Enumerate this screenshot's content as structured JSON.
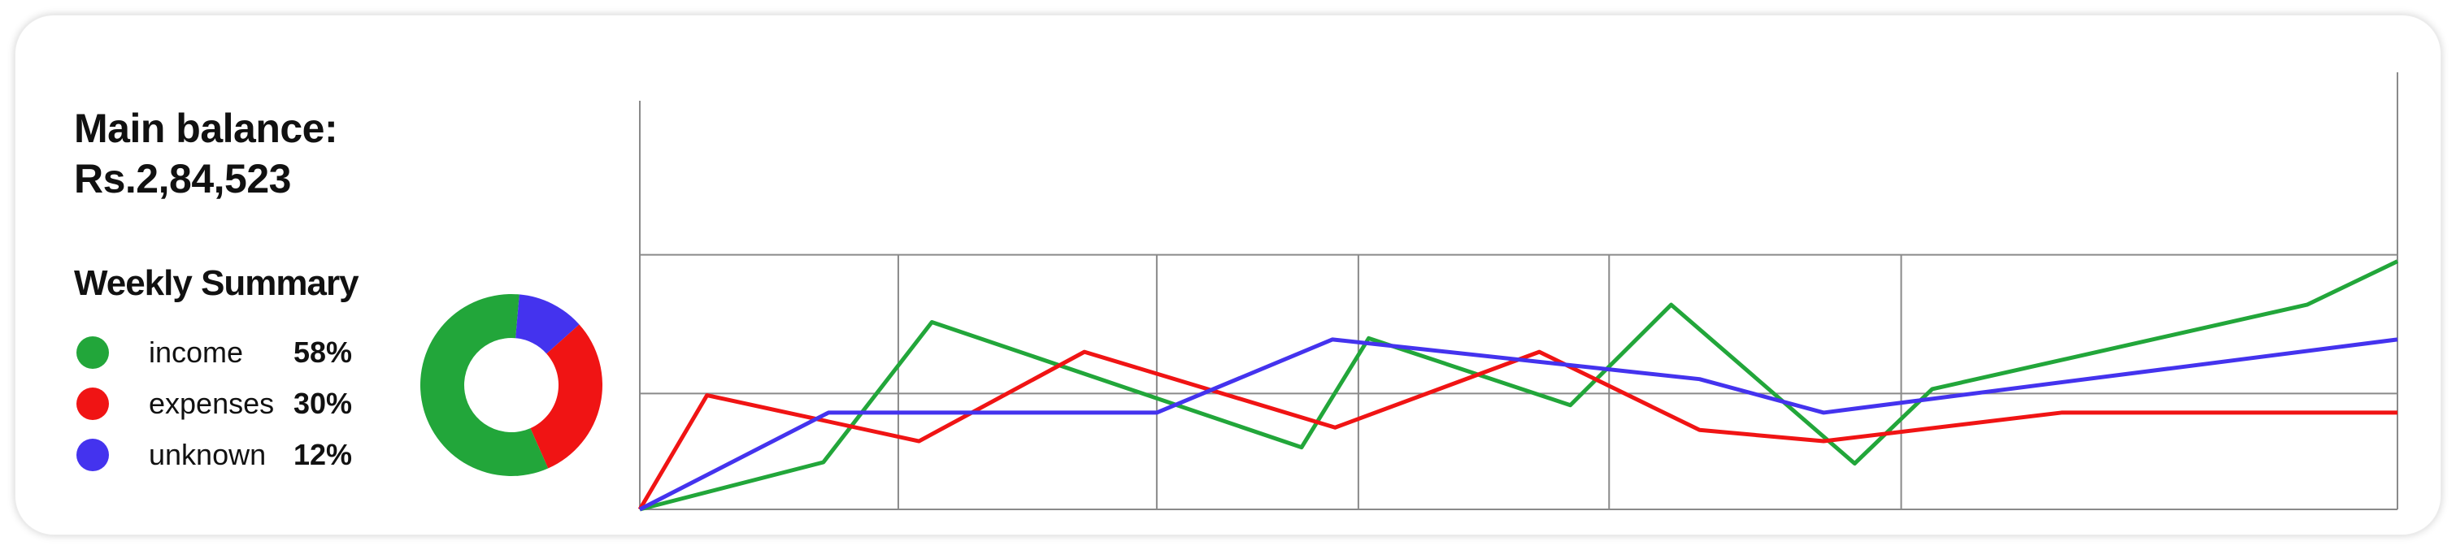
{
  "balance": {
    "label": "Main balance:",
    "value": "Rs.2,84,523"
  },
  "summary": {
    "title": "Weekly Summary",
    "items": [
      {
        "label": "income",
        "percent": "58%",
        "value": 58,
        "color": "#22a63a"
      },
      {
        "label": "expenses",
        "percent": "30%",
        "value": 30,
        "color": "#f01414"
      },
      {
        "label": "unknown",
        "percent": "12%",
        "value": 12,
        "color": "#4433ee"
      }
    ]
  },
  "chart_data": {
    "type": "line",
    "grid": true,
    "ylim": [
      0,
      3
    ],
    "xlim": [
      0,
      7
    ],
    "vertical_gridlines": [
      1,
      2,
      2.78,
      3.75,
      4.88
    ],
    "series": [
      {
        "color": "#22a63a",
        "points": [
          [
            0,
            0
          ],
          [
            0.71,
            0.38
          ],
          [
            1.13,
            1.51
          ],
          [
            2.56,
            0.5
          ],
          [
            2.82,
            1.38
          ],
          [
            3.6,
            0.84
          ],
          [
            3.99,
            1.65
          ],
          [
            4.7,
            0.37
          ],
          [
            5.0,
            0.97
          ],
          [
            6.45,
            1.65
          ],
          [
            6.8,
            2.0
          ]
        ]
      },
      {
        "color": "#f01414",
        "points": [
          [
            0,
            0
          ],
          [
            0.26,
            0.92
          ],
          [
            1.08,
            0.55
          ],
          [
            1.72,
            1.27
          ],
          [
            2.69,
            0.66
          ],
          [
            3.48,
            1.27
          ],
          [
            4.1,
            0.64
          ],
          [
            4.58,
            0.55
          ],
          [
            5.5,
            0.78
          ],
          [
            6.8,
            0.78
          ]
        ]
      },
      {
        "color": "#4433ee",
        "points": [
          [
            0,
            0
          ],
          [
            0.73,
            0.78
          ],
          [
            2.0,
            0.78
          ],
          [
            2.68,
            1.37
          ],
          [
            4.1,
            1.05
          ],
          [
            4.58,
            0.78
          ],
          [
            6.8,
            1.37
          ]
        ]
      }
    ]
  }
}
